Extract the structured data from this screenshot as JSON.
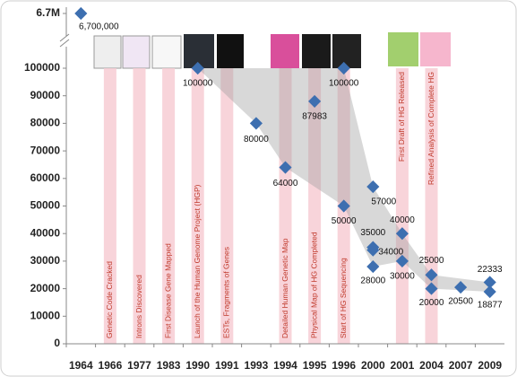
{
  "chart_data": {
    "type": "scatter",
    "categories": [
      "1964",
      "1966",
      "1977",
      "1983",
      "1990",
      "1991",
      "1993",
      "1994",
      "1995",
      "1996",
      "2000",
      "2001",
      "2004",
      "2007",
      "2009"
    ],
    "series": [
      {
        "color": "#3d6fb0",
        "x": [
          "1964",
          "1990",
          "1993",
          "1994",
          "1995",
          "1996",
          "1996",
          "2000",
          "2000",
          "2000",
          "2000",
          "2001",
          "2001",
          "2004",
          "2004",
          "2007",
          "2009",
          "2009"
        ],
        "values": [
          6700000,
          100000,
          80000,
          64000,
          87983,
          100000,
          50000,
          57000,
          35000,
          34000,
          28000,
          40000,
          30000,
          25000,
          20000,
          20500,
          22333,
          18877
        ],
        "value_labels": [
          "6,700,000",
          "100000",
          "80000",
          "64000",
          "87983",
          "100000",
          "50000",
          "57000",
          "35000",
          "34000",
          "28000",
          "40000",
          "30000",
          "25000",
          "20000",
          "20500",
          "22333",
          "18877"
        ]
      }
    ],
    "ylim": [
      0,
      100000
    ],
    "yticks": [
      0,
      10000,
      20000,
      30000,
      40000,
      50000,
      60000,
      70000,
      80000,
      90000,
      100000,
      {
        "value": 6700000,
        "label": "6.7M"
      }
    ],
    "events": [
      {
        "year": "1966",
        "label": "Genetic Code Cracked"
      },
      {
        "year": "1977",
        "label": "Introns Discovered"
      },
      {
        "year": "1983",
        "label": "First Disease Gene Mapped"
      },
      {
        "year": "1990",
        "label": "Launch of the Human Genome Project (HGP)"
      },
      {
        "year": "1991",
        "label": "ESTs, Fragments of Genes"
      },
      {
        "year": "1994",
        "label": "Detailed Human Genetic Map"
      },
      {
        "year": "1995",
        "label": "Physical Map of HG Completed"
      },
      {
        "year": "1996",
        "label": "Start of HG Sequencing"
      },
      {
        "year": "2001",
        "label": "First Draft of HG Released"
      },
      {
        "year": "2004",
        "label": "Refined Analysis of Complete HG"
      }
    ]
  }
}
